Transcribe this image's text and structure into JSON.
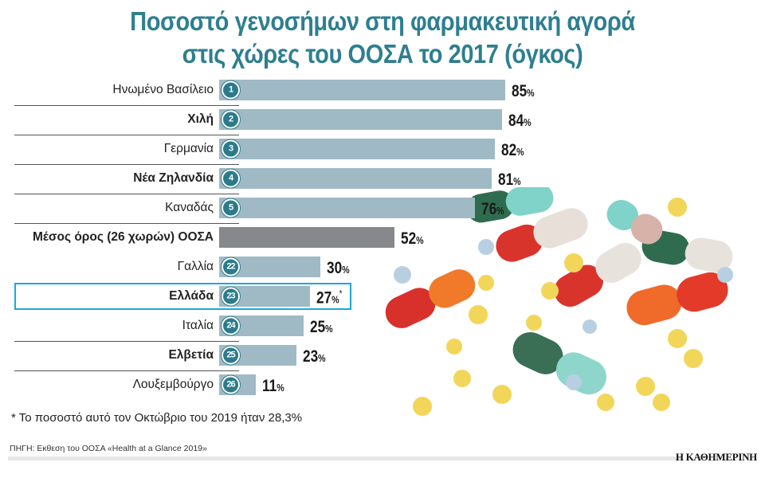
{
  "title_line1": "Ποσοστό γενοσήμων στη φαρμακευτική αγορά",
  "title_line2": "στις χώρες του ΟΟΣΑ το 2017 (όγκος)",
  "chart_data": {
    "type": "bar",
    "orientation": "horizontal",
    "title": "Ποσοστό γενοσήμων στη φαρμακευτική αγορά στις χώρες του ΟΟΣΑ το 2017 (όγκος)",
    "unit": "%",
    "xlim": [
      0,
      100
    ],
    "grid": false,
    "categories": [
      "Ηνωμένο Βασίλειο",
      "Χιλή",
      "Γερμανία",
      "Νέα Ζηλανδία",
      "Καναδάς",
      "Μέσος όρος (26 χωρών) ΟΟΣΑ",
      "Γαλλία",
      "Ελλάδα",
      "Ιταλία",
      "Ελβετία",
      "Λουξεμβούργο"
    ],
    "ranks": [
      "1",
      "2",
      "3",
      "4",
      "5",
      "",
      "22",
      "23",
      "24",
      "25",
      "26"
    ],
    "values": [
      85,
      84,
      82,
      81,
      76,
      52,
      30,
      27,
      25,
      23,
      11
    ],
    "highlighted": "Ελλάδα",
    "highlight_mark": "*",
    "colors": {
      "bar": "#9fbac5",
      "average_bar": "#87888b",
      "badge": "#2b7b8b",
      "highlight": "#19a8e0",
      "title": "#2e7f8f"
    }
  },
  "footnote": "* Το ποσοστό αυτό τον Οκτώβριο του 2019 ήταν 28,3%",
  "source": "ΠΗΓΗ: Εκθεση του ΟΟΣΑ «Health at a Glance 2019»",
  "logo": "Η ΚΑΘΗΜΕΡΙΝΗ"
}
